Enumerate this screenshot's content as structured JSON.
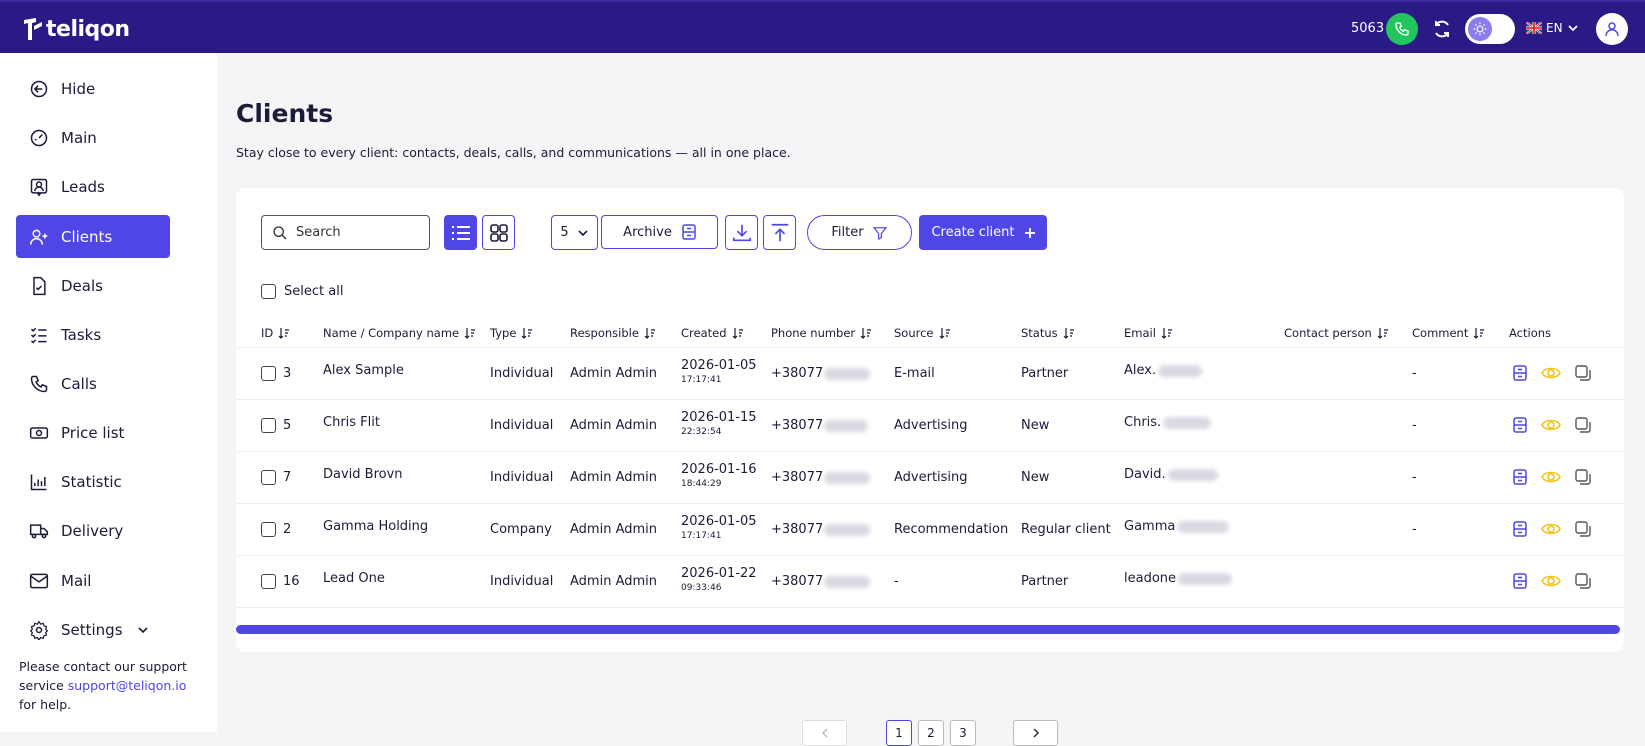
{
  "app": {
    "brand": "teliqon",
    "extension": "5063",
    "language": "EN"
  },
  "sidebar": {
    "items": [
      {
        "label": "Hide",
        "icon": "arrow-left-circle-icon"
      },
      {
        "label": "Main",
        "icon": "dashboard-icon"
      },
      {
        "label": "Leads",
        "icon": "user-card-icon"
      },
      {
        "label": "Clients",
        "icon": "user-plus-icon",
        "active": true
      },
      {
        "label": "Deals",
        "icon": "document-check-icon"
      },
      {
        "label": "Tasks",
        "icon": "checklist-icon"
      },
      {
        "label": "Calls",
        "icon": "phone-icon"
      },
      {
        "label": "Price list",
        "icon": "banknote-icon"
      },
      {
        "label": "Statistic",
        "icon": "chart-icon"
      },
      {
        "label": "Delivery",
        "icon": "truck-icon"
      },
      {
        "label": "Mail",
        "icon": "mail-icon"
      },
      {
        "label": "Settings",
        "icon": "gear-icon"
      }
    ],
    "support_pre": "Please contact our support service ",
    "support_email": "support@teliqon.io",
    "support_post": " for help."
  },
  "page": {
    "title": "Clients",
    "subtitle": "Stay close to every client: contacts, deals, calls, and communications — all in one place."
  },
  "toolbar": {
    "search_placeholder": "Search",
    "per_page": "5",
    "archive_label": "Archive",
    "filter_label": "Filter",
    "create_label": "Create client",
    "select_all": "Select all"
  },
  "table": {
    "headers": [
      "ID",
      "Name / Company name",
      "Type",
      "Responsible",
      "Created",
      "Phone number",
      "Source",
      "Status",
      "Email",
      "Contact person",
      "Comment",
      "Actions"
    ],
    "rows": [
      {
        "id": "3",
        "name": "Alex Sample",
        "type": "Individual",
        "responsible": "Admin Admin",
        "date": "2026-01-05",
        "time": "17:17:41",
        "phone": "+38077",
        "source": "E-mail",
        "status": "Partner",
        "email": "Alex.",
        "contact": "",
        "comment": "-"
      },
      {
        "id": "5",
        "name": "Chris Flit",
        "type": "Individual",
        "responsible": "Admin Admin",
        "date": "2026-01-15",
        "time": "22:32:54",
        "phone": "+38077",
        "source": "Advertising",
        "status": "New",
        "email": "Chris.",
        "contact": "",
        "comment": "-"
      },
      {
        "id": "7",
        "name": "David Brovn",
        "type": "Individual",
        "responsible": "Admin Admin",
        "date": "2026-01-16",
        "time": "18:44:29",
        "phone": "+38077",
        "source": "Advertising",
        "status": "New",
        "email": "David.",
        "contact": "",
        "comment": "-"
      },
      {
        "id": "2",
        "name": "Gamma Holding",
        "type": "Company",
        "responsible": "Admin Admin",
        "date": "2026-01-05",
        "time": "17:17:41",
        "phone": "+38077",
        "source": "Recommendation",
        "status": "Regular client",
        "email": "Gamma",
        "contact": "",
        "comment": "-"
      },
      {
        "id": "16",
        "name": "Lead One",
        "type": "Individual",
        "responsible": "Admin Admin",
        "date": "2026-01-22",
        "time": "09:33:46",
        "phone": "+38077",
        "source": "-",
        "status": "Partner",
        "email": "leadone",
        "contact": "",
        "comment": ""
      }
    ]
  },
  "pagination": {
    "pages": [
      "1",
      "2",
      "3"
    ],
    "current": "1"
  },
  "colors": {
    "brand": "#2a1a86",
    "accent": "#4f46e5",
    "call": "#22c55e",
    "eye": "#f2c21b"
  }
}
